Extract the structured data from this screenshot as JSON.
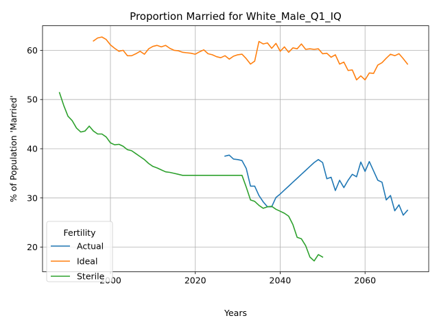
{
  "chart_data": {
    "type": "line",
    "title": "Proportion Married for White_Male_Q1_IQ",
    "xlabel": "Years",
    "ylabel": "% of Population 'Married'",
    "xlim": [
      1984,
      2075
    ],
    "ylim": [
      15,
      65
    ],
    "xticks": [
      2000,
      2020,
      2040,
      2060
    ],
    "yticks": [
      20,
      30,
      40,
      50,
      60
    ],
    "grid": true,
    "legend": {
      "title": "Fertility",
      "placement": "bottom-left"
    },
    "series": [
      {
        "name": "Actual",
        "color": "#1f77b4",
        "x": [
          2027,
          2028,
          2029,
          2030,
          2031,
          2032,
          2033,
          2034,
          2035,
          2036,
          2037,
          2038,
          2039,
          2040,
          2041,
          2042,
          2043,
          2044,
          2045,
          2046,
          2047,
          2048,
          2049,
          2050,
          2051,
          2052,
          2053,
          2054,
          2055,
          2056,
          2057,
          2058,
          2059,
          2060,
          2061,
          2062,
          2063,
          2064,
          2065,
          2066,
          2067,
          2068,
          2069,
          2070
        ],
        "y": [
          38.5,
          38.7,
          37.9,
          37.8,
          37.6,
          36.0,
          32.4,
          32.4,
          30.5,
          29.2,
          28.2,
          28.2,
          30.1,
          30.8,
          31.6,
          32.4,
          33.2,
          34.0,
          34.8,
          35.6,
          36.4,
          37.2,
          37.8,
          37.2,
          33.9,
          34.2,
          31.5,
          33.6,
          32.1,
          33.6,
          34.8,
          34.3,
          37.3,
          35.4,
          37.4,
          35.5,
          33.6,
          33.2,
          29.6,
          30.5,
          27.4,
          28.6,
          26.5,
          27.5
        ]
      },
      {
        "name": "Ideal",
        "color": "#ff7f0e",
        "x": [
          1996,
          1997,
          1998,
          1999,
          2000,
          2001,
          2002,
          2003,
          2004,
          2005,
          2006,
          2007,
          2008,
          2009,
          2010,
          2011,
          2012,
          2013,
          2014,
          2015,
          2016,
          2017,
          2018,
          2019,
          2020,
          2021,
          2022,
          2023,
          2024,
          2025,
          2026,
          2027,
          2028,
          2029,
          2030,
          2031,
          2032,
          2033,
          2034,
          2035,
          2036,
          2037,
          2038,
          2039,
          2040,
          2041,
          2042,
          2043,
          2044,
          2045,
          2046,
          2047,
          2048,
          2049,
          2050,
          2051,
          2052,
          2053,
          2054,
          2055,
          2056,
          2057,
          2058,
          2059,
          2060,
          2061,
          2062,
          2063,
          2064,
          2065,
          2066,
          2067,
          2068,
          2069,
          2070
        ],
        "y": [
          61.9,
          62.5,
          62.7,
          62.2,
          61.1,
          60.4,
          59.8,
          60.0,
          58.9,
          58.9,
          59.3,
          59.8,
          59.2,
          60.3,
          60.8,
          61.0,
          60.7,
          61.0,
          60.4,
          60.0,
          59.9,
          59.6,
          59.5,
          59.4,
          59.2,
          59.7,
          60.1,
          59.3,
          59.1,
          58.7,
          58.5,
          58.9,
          58.2,
          58.8,
          59.1,
          59.2,
          58.3,
          57.2,
          57.8,
          61.8,
          61.3,
          61.5,
          60.4,
          61.4,
          59.8,
          60.7,
          59.6,
          60.5,
          60.3,
          61.3,
          60.2,
          60.3,
          60.2,
          60.3,
          59.3,
          59.4,
          58.6,
          59.1,
          57.2,
          57.6,
          55.9,
          56.0,
          54.0,
          54.8,
          54.0,
          55.4,
          55.3,
          57.0,
          57.5,
          58.4,
          59.2,
          58.9,
          59.3,
          58.3,
          57.2
        ]
      },
      {
        "name": "Sterile",
        "color": "#2ca02c",
        "x": [
          1988,
          1989,
          1990,
          1991,
          1992,
          1993,
          1994,
          1995,
          1996,
          1997,
          1998,
          1999,
          2000,
          2001,
          2002,
          2003,
          2004,
          2005,
          2006,
          2007,
          2008,
          2009,
          2010,
          2011,
          2012,
          2013,
          2014,
          2015,
          2016,
          2017,
          2018,
          2019,
          2020,
          2021,
          2022,
          2023,
          2024,
          2025,
          2026,
          2027,
          2028,
          2029,
          2030,
          2031,
          2032,
          2033,
          2034,
          2035,
          2036,
          2037,
          2038,
          2039,
          2040,
          2041,
          2042,
          2043,
          2044,
          2045,
          2046,
          2047,
          2048,
          2049,
          2050
        ],
        "y": [
          51.4,
          48.8,
          46.6,
          45.7,
          44.2,
          43.4,
          43.6,
          44.6,
          43.6,
          43.0,
          43.0,
          42.4,
          41.2,
          40.8,
          40.9,
          40.5,
          39.8,
          39.6,
          39.0,
          38.4,
          37.8,
          37.0,
          36.4,
          36.1,
          35.7,
          35.3,
          35.2,
          35.0,
          34.8,
          34.6,
          34.6,
          34.6,
          34.6,
          34.6,
          34.6,
          34.6,
          34.6,
          34.6,
          34.6,
          34.6,
          34.6,
          34.6,
          34.6,
          34.6,
          32.2,
          29.6,
          29.3,
          28.5,
          27.9,
          28.2,
          28.3,
          27.7,
          27.3,
          26.9,
          26.3,
          24.6,
          22.0,
          21.7,
          20.3,
          18.0,
          17.2,
          18.5,
          18.0
        ]
      }
    ]
  }
}
